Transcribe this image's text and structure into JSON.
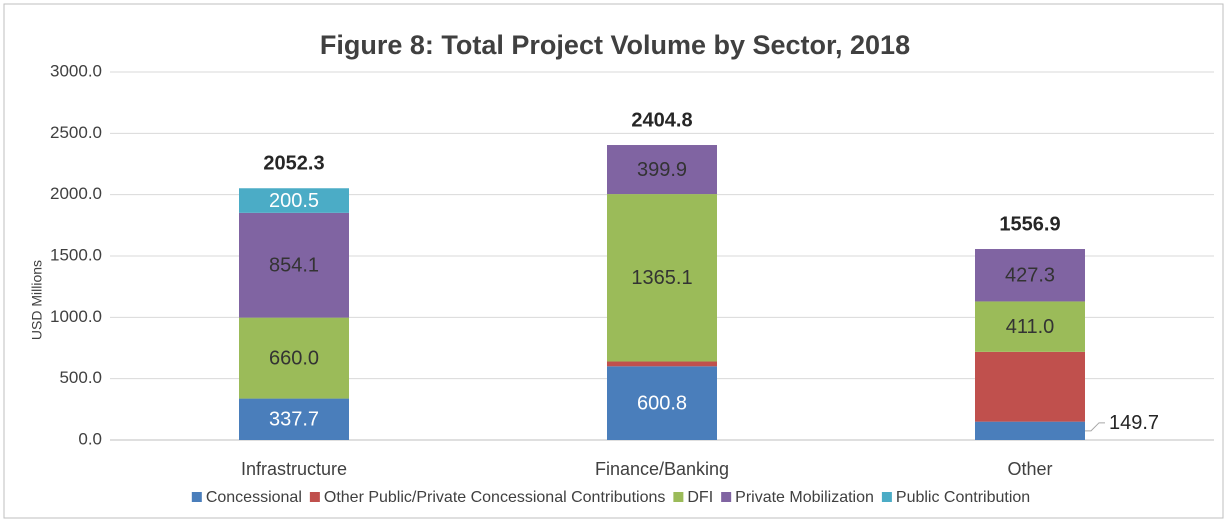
{
  "chart_data": {
    "type": "stacked_bar",
    "title": "Figure 8: Total Project Volume by Sector, 2018",
    "y_label": "USD Millions",
    "categories": [
      "Infrastructure",
      "Finance/Banking",
      "Other"
    ],
    "series": [
      {
        "name": "Concessional",
        "color": "#4a7ebb",
        "label_color": "#ffffff",
        "values": [
          337.7,
          600.8,
          149.7
        ],
        "value_labels": [
          "337.7",
          "600.8",
          "149.7"
        ]
      },
      {
        "name": "Other Public/Private Concessional Contributions",
        "color": "#c0504d",
        "label_color": "#ffffff",
        "values": [
          0,
          39.0,
          568.9
        ],
        "value_labels": [
          null,
          null,
          null
        ]
      },
      {
        "name": "DFI",
        "color": "#9bbb59",
        "label_color": "#333333",
        "values": [
          660.0,
          1365.1,
          411.0
        ],
        "value_labels": [
          "660.0",
          "1365.1",
          "411.0"
        ]
      },
      {
        "name": "Private Mobilization",
        "color": "#8064a2",
        "label_color": "#333333",
        "values": [
          854.1,
          399.9,
          427.3
        ],
        "value_labels": [
          "854.1",
          "399.9",
          "427.3"
        ]
      },
      {
        "name": "Public Contribution",
        "color": "#4bacc6",
        "label_color": "#ffffff",
        "values": [
          200.5,
          0,
          0
        ],
        "value_labels": [
          "200.5",
          null,
          null
        ]
      }
    ],
    "totals": [
      2052.3,
      2404.8,
      1556.9
    ],
    "ylim": [
      0,
      3000
    ],
    "yticks": [
      {
        "value": 0,
        "label": "0.0"
      },
      {
        "value": 500,
        "label": "500.0"
      },
      {
        "value": 1000,
        "label": "1000.0"
      },
      {
        "value": 1500,
        "label": "1500.0"
      },
      {
        "value": 2000,
        "label": "2000.0"
      },
      {
        "value": 2500,
        "label": "2500.0"
      },
      {
        "value": 3000,
        "label": "3000.0"
      }
    ],
    "grid": true,
    "legend": "bottom"
  }
}
